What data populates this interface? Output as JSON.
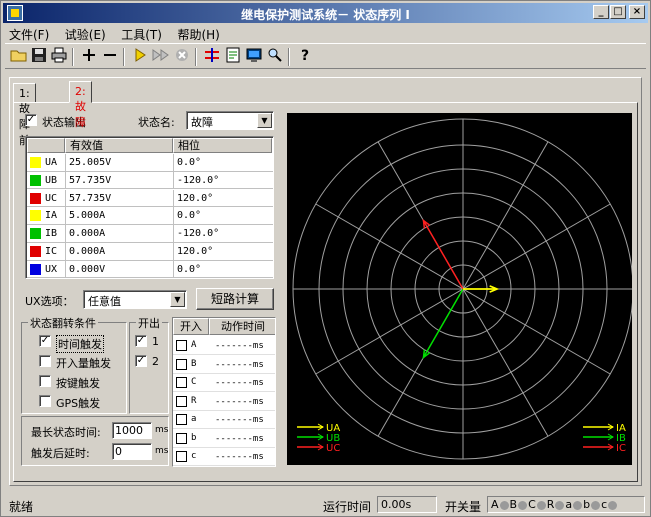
{
  "window": {
    "title": "继电保护测试系统－ 状态序列 I",
    "min_label": "_",
    "max_label": "□",
    "close_label": "×"
  },
  "menu": [
    "文件(F)",
    "试验(E)",
    "工具(T)",
    "帮助(H)"
  ],
  "toolbar": {
    "icons": [
      "open-folder-icon",
      "save-icon",
      "print-icon",
      "add-icon",
      "remove-icon",
      "play-icon",
      "fast-forward-icon",
      "stop-icon",
      "waveform-icon",
      "report-icon",
      "monitor-icon",
      "zoom-icon",
      "help-icon"
    ]
  },
  "tabs": [
    {
      "label": "1:故障前",
      "active": false
    },
    {
      "label": "2:故障",
      "active": true
    }
  ],
  "state": {
    "output_label": "状态输出",
    "output_checked": true,
    "name_label": "状态名:",
    "name_value": "故障"
  },
  "grid": {
    "col_value": "有效值",
    "col_angle": "相位",
    "rows": [
      {
        "name": "UA",
        "value": "25.005V",
        "angle": "0.0°",
        "color": "#ffff00"
      },
      {
        "name": "UB",
        "value": "57.735V",
        "angle": "-120.0°",
        "color": "#00c000"
      },
      {
        "name": "UC",
        "value": "57.735V",
        "angle": "120.0°",
        "color": "#e00000"
      },
      {
        "name": "IA",
        "value": "5.000A",
        "angle": "0.0°",
        "color": "#ffff00"
      },
      {
        "name": "IB",
        "value": "0.000A",
        "angle": "-120.0°",
        "color": "#00c000"
      },
      {
        "name": "IC",
        "value": "0.000A",
        "angle": "120.0°",
        "color": "#e00000"
      },
      {
        "name": "UX",
        "value": "0.000V",
        "angle": "0.0°",
        "color": "#0000e0"
      }
    ]
  },
  "ux": {
    "label": "UX选项：",
    "value": "任意值",
    "calc_button": "短路计算"
  },
  "trigger": {
    "group_title": "状态翻转条件",
    "items": [
      {
        "label": "时间触发",
        "checked": true
      },
      {
        "label": "开入量触发",
        "checked": false
      },
      {
        "label": "按键触发",
        "checked": false
      },
      {
        "label": "GPS触发",
        "checked": false
      }
    ]
  },
  "binary_out": {
    "title": "开出",
    "items": [
      {
        "label": "1",
        "checked": true
      },
      {
        "label": "2",
        "checked": true
      }
    ]
  },
  "binary_in": {
    "col_in": "开入",
    "col_time": "动作时间",
    "rows": [
      {
        "ch": "A",
        "time": "-------ms"
      },
      {
        "ch": "B",
        "time": "-------ms"
      },
      {
        "ch": "C",
        "time": "-------ms"
      },
      {
        "ch": "R",
        "time": "-------ms"
      },
      {
        "ch": "a",
        "time": "-------ms"
      },
      {
        "ch": "b",
        "time": "-------ms"
      },
      {
        "ch": "c",
        "time": "-------ms"
      }
    ]
  },
  "timing": {
    "max_label": "最长状态时间:",
    "max_value": "1000",
    "max_unit": "ms",
    "delay_label": "触发后延时:",
    "delay_value": "0",
    "delay_unit": "ms"
  },
  "phasor": {
    "legend_left": [
      "UA",
      "UB",
      "UC"
    ],
    "legend_right": [
      "IA",
      "IB",
      "IC"
    ],
    "colors": {
      "A": "#ffff00",
      "B": "#00e000",
      "C": "#ff2020"
    }
  },
  "statusbar": {
    "ready": "就绪",
    "runtime_label": "运行时间",
    "runtime_value": "0.00s",
    "switch_label": "开关量",
    "channels": [
      "A",
      "B",
      "C",
      "R",
      "a",
      "b",
      "c"
    ]
  }
}
